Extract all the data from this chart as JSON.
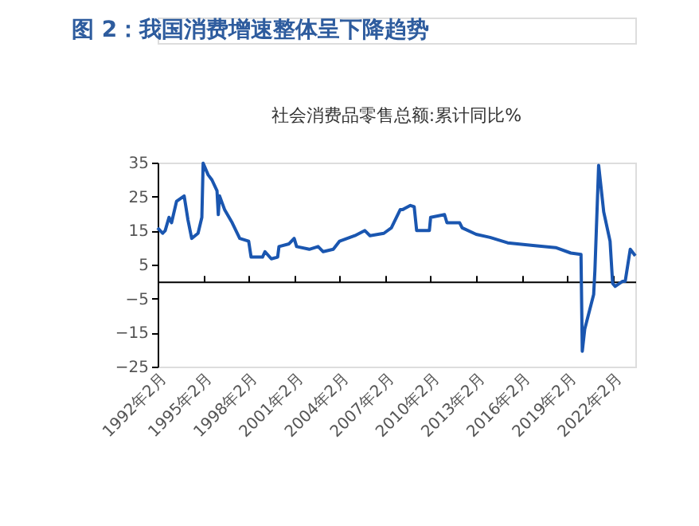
{
  "chart_data": {
    "type": "line",
    "title": "图 2：我国消费增速整体呈下降趋势",
    "subtitle": "社会消费品零售总额:累计同比%",
    "x": [
      "1992-02",
      "1992-06",
      "1992-08",
      "1992-11",
      "1993-01",
      "1993-05",
      "1993-11",
      "1994-02",
      "1994-05",
      "1994-10",
      "1995-01",
      "1995-02",
      "1995-06",
      "1995-09",
      "1996-01",
      "1996-02",
      "1996-03",
      "1996-07",
      "1997-01",
      "1997-07",
      "1998-02",
      "1998-04",
      "1999-01",
      "1999-03",
      "1999-08",
      "2000-01",
      "2000-02",
      "2000-10",
      "2001-02",
      "2001-04",
      "2002-02",
      "2002-09",
      "2003-01",
      "2003-09",
      "2004-02",
      "2005-02",
      "2005-10",
      "2006-02",
      "2007-01",
      "2007-07",
      "2008-02",
      "2008-04",
      "2008-10",
      "2009-01",
      "2009-03",
      "2010-01",
      "2010-02",
      "2011-01",
      "2011-03",
      "2012-01",
      "2012-03",
      "2013-02",
      "2014-01",
      "2015-03",
      "2016-11",
      "2018-05",
      "2019-05",
      "2020-01",
      "2020-02",
      "2020-04",
      "2020-11",
      "2020-12",
      "2021-03",
      "2021-07",
      "2021-12",
      "2022-02",
      "2022-04",
      "2022-10",
      "2022-12",
      "2023-04",
      "2023-08"
    ],
    "series": [
      {
        "color": "#1a56b0",
        "values": [
          15.8,
          14.2,
          15,
          18.9,
          17.3,
          23.6,
          25.2,
          18.1,
          12.7,
          14.2,
          18.9,
          34.8,
          31.4,
          29.9,
          26.7,
          19.7,
          25.2,
          21.2,
          17.3,
          12.7,
          11.9,
          7.2,
          7.2,
          8.8,
          6.7,
          7.2,
          10.3,
          11.1,
          12.7,
          10.3,
          9.5,
          10.3,
          8.8,
          9.5,
          11.9,
          13.5,
          15,
          13.5,
          14.2,
          15.8,
          21.2,
          21.2,
          22.4,
          22,
          15,
          15,
          18.9,
          19.7,
          17.3,
          17.3,
          15.8,
          13.9,
          13,
          11.4,
          10.6,
          10,
          8.4,
          8,
          -20.5,
          -13.9,
          -3.8,
          3.3,
          34.2,
          20.5,
          11.9,
          -0.5,
          -1.4,
          0.1,
          0.1,
          9.5,
          7.6
        ]
      }
    ],
    "xlim": [
      "1992-02",
      "2023-08"
    ],
    "xticks": [
      {
        "value": "1992-02",
        "label": "1992年2月"
      },
      {
        "value": "1995-02",
        "label": "1995年2月"
      },
      {
        "value": "1998-02",
        "label": "1998年2月"
      },
      {
        "value": "2001-02",
        "label": "2001年2月"
      },
      {
        "value": "2004-02",
        "label": "2004年2月"
      },
      {
        "value": "2007-02",
        "label": "2007年2月"
      },
      {
        "value": "2010-02",
        "label": "2010年2月"
      },
      {
        "value": "2013-02",
        "label": "2013年2月"
      },
      {
        "value": "2016-02",
        "label": "2016年2月"
      },
      {
        "value": "2019-02",
        "label": "2019年2月"
      },
      {
        "value": "2022-02",
        "label": "2022年2月"
      }
    ],
    "ylim": [
      -25,
      35
    ],
    "yticks": [
      -25,
      -15,
      -5,
      5,
      15,
      25,
      35
    ],
    "grid": false,
    "legend": false,
    "marker": "none",
    "line_style": "solid"
  }
}
